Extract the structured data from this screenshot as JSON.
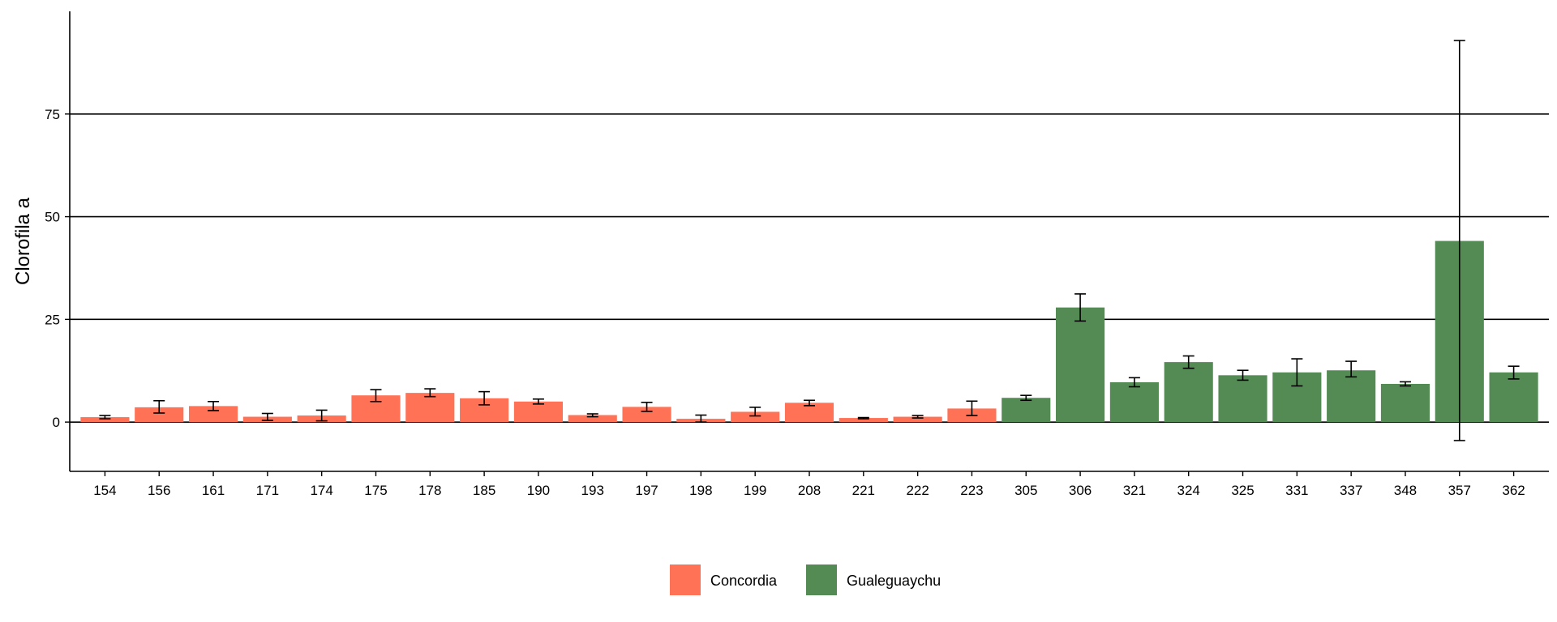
{
  "chart_data": {
    "type": "bar",
    "title": "",
    "xlabel": "",
    "ylabel": "Clorofila a",
    "ylim": [
      -12,
      100
    ],
    "yticks": [
      0,
      25,
      50,
      75
    ],
    "grid": "horizontal major lines at y ticks",
    "legend_position": "bottom",
    "categories": [
      "154",
      "156",
      "161",
      "171",
      "174",
      "175",
      "178",
      "185",
      "190",
      "193",
      "197",
      "198",
      "199",
      "208",
      "221",
      "222",
      "223",
      "305",
      "306",
      "321",
      "324",
      "325",
      "331",
      "337",
      "348",
      "357",
      "362"
    ],
    "values": [
      1.2,
      3.6,
      3.9,
      1.3,
      1.6,
      6.5,
      7.1,
      5.8,
      5.0,
      1.7,
      3.7,
      0.8,
      2.5,
      4.7,
      1.0,
      1.3,
      3.3,
      5.9,
      27.9,
      9.7,
      14.6,
      11.4,
      12.1,
      12.6,
      9.3,
      44.1,
      12.1
    ],
    "error_low": [
      0.8,
      2.2,
      2.8,
      0.4,
      0.3,
      5.0,
      6.2,
      4.2,
      4.4,
      1.3,
      2.6,
      0.0,
      1.5,
      4.0,
      0.8,
      1.0,
      1.6,
      5.3,
      24.6,
      8.6,
      13.1,
      10.2,
      8.8,
      11.0,
      8.8,
      -4.5,
      10.5
    ],
    "error_high": [
      1.6,
      5.2,
      5.0,
      2.1,
      2.9,
      7.9,
      8.1,
      7.4,
      5.6,
      2.0,
      4.8,
      1.7,
      3.6,
      5.3,
      1.1,
      1.6,
      5.1,
      6.5,
      31.2,
      10.8,
      16.1,
      12.6,
      15.4,
      14.8,
      9.8,
      92.9,
      13.6
    ],
    "groups": [
      "Concordia",
      "Concordia",
      "Concordia",
      "Concordia",
      "Concordia",
      "Concordia",
      "Concordia",
      "Concordia",
      "Concordia",
      "Concordia",
      "Concordia",
      "Concordia",
      "Concordia",
      "Concordia",
      "Concordia",
      "Concordia",
      "Concordia",
      "Gualeguaychu",
      "Gualeguaychu",
      "Gualeguaychu",
      "Gualeguaychu",
      "Gualeguaychu",
      "Gualeguaychu",
      "Gualeguaychu",
      "Gualeguaychu",
      "Gualeguaychu",
      "Gualeguaychu"
    ],
    "legend": [
      {
        "name": "Concordia",
        "color": "#ff7256"
      },
      {
        "name": "Gualeguaychu",
        "color": "#548b54"
      }
    ]
  }
}
